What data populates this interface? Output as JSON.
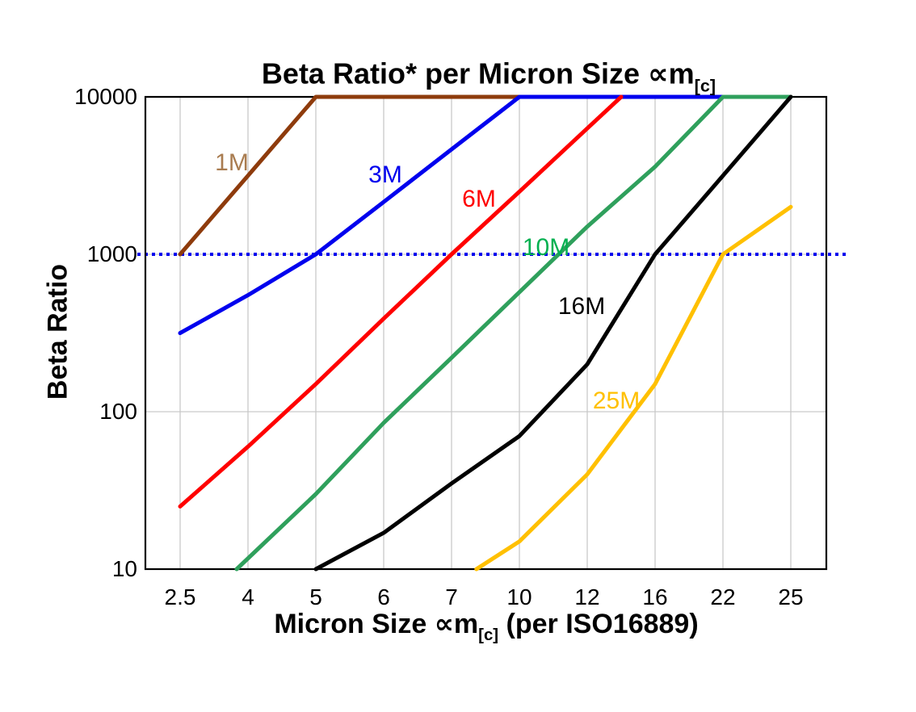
{
  "chart_data": {
    "type": "line",
    "title": {
      "text": "Beta Ratio* per Micron Size ∝m",
      "subscript": "[c]"
    },
    "xlabel": {
      "pre": "Micron Size ∝m",
      "subscript": "[c]",
      "post": " (per ISO16889)"
    },
    "ylabel": "Beta Ratio",
    "x_scale": "categorical",
    "y_scale": "log",
    "ylim": [
      10,
      10000
    ],
    "y_ticks": [
      10000,
      1000,
      100,
      10
    ],
    "y_tick_labels": [
      "10000",
      "1000",
      "100",
      "10"
    ],
    "categories": [
      2.5,
      4,
      5,
      6,
      7,
      10,
      12,
      16,
      22,
      25
    ],
    "x_tick_labels": [
      "2.5",
      "4",
      "5",
      "6",
      "7",
      "10",
      "12",
      "16",
      "22",
      "25"
    ],
    "grid": {
      "vertical": true,
      "horizontal_at": [
        1000,
        100
      ],
      "color": "#c9c9c9"
    },
    "reference_line": {
      "y": 1000,
      "style": "dotted",
      "color": "#0000ee"
    },
    "series": [
      {
        "name": "1M",
        "line_color": "#8e3b0c",
        "label_color": "#a97c50",
        "points": [
          [
            2.5,
            1000
          ],
          [
            4,
            3160
          ],
          [
            5,
            10000
          ],
          [
            10,
            10000
          ]
        ]
      },
      {
        "name": "3M",
        "line_color": "#0000ee",
        "label_color": "#0000ee",
        "points": [
          [
            2.5,
            316
          ],
          [
            4,
            550
          ],
          [
            5,
            1000
          ],
          [
            6,
            2150
          ],
          [
            7,
            4640
          ],
          [
            10,
            10000
          ],
          [
            22,
            10000
          ]
        ]
      },
      {
        "name": "6M",
        "line_color": "#ff0000",
        "label_color": "#ff0000",
        "points": [
          [
            2.5,
            25
          ],
          [
            4,
            60
          ],
          [
            5,
            150
          ],
          [
            6,
            390
          ],
          [
            7,
            1000
          ],
          [
            10,
            2500
          ],
          [
            12,
            6300
          ],
          [
            14,
            10000
          ]
        ]
      },
      {
        "name": "10M",
        "line_color": "#2fa05c",
        "label_color": "#00b050",
        "points": [
          [
            3.75,
            10
          ],
          [
            5,
            30
          ],
          [
            6,
            85
          ],
          [
            7,
            220
          ],
          [
            10,
            575
          ],
          [
            12,
            1500
          ],
          [
            16,
            3600
          ],
          [
            22,
            10000
          ],
          [
            25,
            10000
          ]
        ]
      },
      {
        "name": "16M",
        "line_color": "#000000",
        "label_color": "#000000",
        "points": [
          [
            5,
            10
          ],
          [
            6,
            17
          ],
          [
            7,
            35
          ],
          [
            10,
            70
          ],
          [
            12,
            200
          ],
          [
            16,
            1000
          ],
          [
            22,
            3160
          ],
          [
            25,
            10000
          ]
        ]
      },
      {
        "name": "25M",
        "line_color": "#ffc000",
        "label_color": "#ffc000",
        "points": [
          [
            8.1,
            10
          ],
          [
            10,
            15
          ],
          [
            12,
            40
          ],
          [
            16,
            150
          ],
          [
            22,
            1000
          ],
          [
            25,
            2000
          ]
        ]
      }
    ]
  }
}
